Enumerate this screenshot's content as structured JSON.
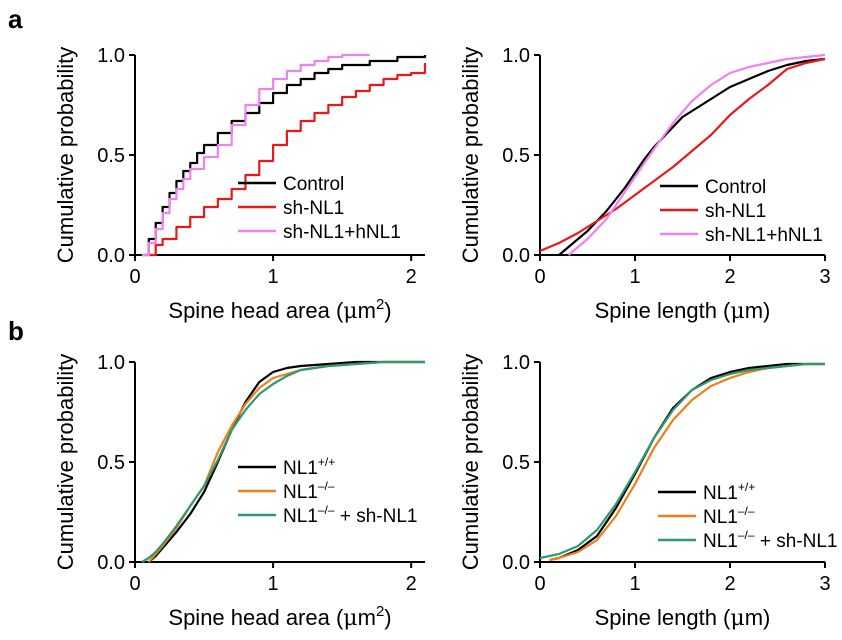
{
  "panel_labels": [
    "a",
    "b"
  ],
  "chart_data": [
    {
      "panel": "a",
      "type": "line",
      "step": true,
      "ylabel": "Cumulative probability",
      "xlabel": "Spine head area (μm²)",
      "xlabel_main": "Spine head area (",
      "xlabel_mu": "μ",
      "xlabel_unit": "m",
      "xlabel_sup": "2",
      "xlabel_close": ")",
      "xlim": [
        0,
        2.1
      ],
      "ylim": [
        0,
        1.0
      ],
      "xticks": [
        "0",
        "1",
        "2"
      ],
      "yticks": [
        "0.0",
        "0.5",
        "1.0"
      ],
      "legend_position": "bottom-right",
      "series": [
        {
          "name": "Control",
          "color": "#000000",
          "x": [
            0.05,
            0.1,
            0.15,
            0.2,
            0.25,
            0.3,
            0.35,
            0.4,
            0.45,
            0.5,
            0.6,
            0.7,
            0.8,
            0.9,
            1.0,
            1.1,
            1.2,
            1.3,
            1.4,
            1.5,
            1.7,
            1.9,
            2.1
          ],
          "y": [
            0.0,
            0.08,
            0.16,
            0.24,
            0.31,
            0.37,
            0.42,
            0.46,
            0.51,
            0.55,
            0.61,
            0.67,
            0.71,
            0.76,
            0.81,
            0.85,
            0.88,
            0.91,
            0.93,
            0.95,
            0.97,
            0.99,
            1.0
          ]
        },
        {
          "name": "sh-NL1",
          "color": "#e8191c",
          "x": [
            0.1,
            0.15,
            0.2,
            0.3,
            0.4,
            0.5,
            0.6,
            0.7,
            0.8,
            0.9,
            1.0,
            1.1,
            1.2,
            1.3,
            1.4,
            1.5,
            1.6,
            1.7,
            1.8,
            1.9,
            2.0,
            2.1
          ],
          "y": [
            0.0,
            0.05,
            0.08,
            0.14,
            0.19,
            0.24,
            0.28,
            0.33,
            0.4,
            0.47,
            0.55,
            0.62,
            0.67,
            0.71,
            0.75,
            0.79,
            0.82,
            0.85,
            0.88,
            0.9,
            0.91,
            0.96
          ]
        },
        {
          "name": "sh-NL1+hNL1",
          "color": "#ee82ee",
          "x": [
            0.05,
            0.1,
            0.15,
            0.2,
            0.25,
            0.3,
            0.35,
            0.4,
            0.5,
            0.6,
            0.7,
            0.8,
            0.9,
            1.0,
            1.1,
            1.2,
            1.3,
            1.4,
            1.5,
            1.6,
            1.7
          ],
          "y": [
            0.0,
            0.06,
            0.13,
            0.21,
            0.28,
            0.33,
            0.38,
            0.43,
            0.49,
            0.55,
            0.65,
            0.75,
            0.83,
            0.88,
            0.92,
            0.95,
            0.97,
            0.99,
            1.0,
            1.0,
            1.0
          ]
        }
      ]
    },
    {
      "panel": "a",
      "type": "line",
      "step": false,
      "ylabel": "Cumulative probability",
      "xlabel": "Spine length (μm)",
      "xlabel_main": "Spine length (",
      "xlabel_mu": "μ",
      "xlabel_unit": "m)",
      "xlabel_sup": "",
      "xlabel_close": "",
      "xlim": [
        0,
        3
      ],
      "ylim": [
        0,
        1.0
      ],
      "xticks": [
        "0",
        "1",
        "2",
        "3"
      ],
      "yticks": [
        "0.0",
        "0.5",
        "1.0"
      ],
      "legend_position": "bottom-right",
      "series": [
        {
          "name": "Control",
          "color": "#000000",
          "x": [
            0.2,
            0.3,
            0.4,
            0.5,
            0.6,
            0.7,
            0.8,
            0.9,
            1.0,
            1.1,
            1.2,
            1.3,
            1.4,
            1.5,
            1.6,
            1.8,
            2.0,
            2.2,
            2.4,
            2.6,
            2.8,
            3.0
          ],
          "y": [
            0.0,
            0.04,
            0.08,
            0.12,
            0.17,
            0.22,
            0.28,
            0.34,
            0.41,
            0.48,
            0.54,
            0.59,
            0.64,
            0.69,
            0.72,
            0.78,
            0.84,
            0.88,
            0.92,
            0.95,
            0.97,
            0.98
          ]
        },
        {
          "name": "sh-NL1",
          "color": "#e8191c",
          "x": [
            0.0,
            0.2,
            0.4,
            0.6,
            0.8,
            1.0,
            1.2,
            1.4,
            1.6,
            1.8,
            2.0,
            2.2,
            2.4,
            2.6,
            2.8,
            3.0
          ],
          "y": [
            0.02,
            0.06,
            0.11,
            0.17,
            0.23,
            0.3,
            0.37,
            0.44,
            0.52,
            0.6,
            0.7,
            0.78,
            0.85,
            0.93,
            0.96,
            0.98
          ]
        },
        {
          "name": "sh-NL1+hNL1",
          "color": "#ee82ee",
          "x": [
            0.3,
            0.4,
            0.5,
            0.6,
            0.7,
            0.8,
            0.9,
            1.0,
            1.2,
            1.4,
            1.6,
            1.8,
            2.0,
            2.2,
            2.4,
            2.6,
            2.8,
            3.0
          ],
          "y": [
            0.0,
            0.04,
            0.08,
            0.13,
            0.18,
            0.25,
            0.32,
            0.39,
            0.53,
            0.66,
            0.77,
            0.85,
            0.91,
            0.94,
            0.96,
            0.98,
            0.99,
            1.0
          ]
        }
      ]
    },
    {
      "panel": "b",
      "type": "line",
      "step": false,
      "ylabel": "Cumulative probability",
      "xlabel": "Spine head area (μm²)",
      "xlabel_main": "Spine head area (",
      "xlabel_mu": "μ",
      "xlabel_unit": "m",
      "xlabel_sup": "2",
      "xlabel_close": ")",
      "xlim": [
        0,
        2.1
      ],
      "ylim": [
        0,
        1.0
      ],
      "xticks": [
        "0",
        "1",
        "2"
      ],
      "yticks": [
        "0.0",
        "0.5",
        "1.0"
      ],
      "legend_position": "bottom-right",
      "series": [
        {
          "name_main": "NL1",
          "name_sup": "+/+",
          "name_tail": "",
          "color": "#000000",
          "x": [
            0.1,
            0.15,
            0.2,
            0.3,
            0.4,
            0.5,
            0.6,
            0.7,
            0.8,
            0.9,
            1.0,
            1.1,
            1.2,
            1.4,
            1.6,
            1.8,
            2.1
          ],
          "y": [
            0.0,
            0.03,
            0.07,
            0.15,
            0.24,
            0.35,
            0.5,
            0.66,
            0.8,
            0.9,
            0.95,
            0.97,
            0.98,
            0.99,
            1.0,
            1.0,
            1.0
          ]
        },
        {
          "name_main": "NL1",
          "name_sup": "–/–",
          "name_tail": "",
          "color": "#f07f1b",
          "x": [
            0.1,
            0.15,
            0.2,
            0.3,
            0.4,
            0.5,
            0.6,
            0.7,
            0.8,
            0.9,
            1.0,
            1.1,
            1.2,
            1.4,
            1.6,
            1.8,
            2.1
          ],
          "y": [
            0.0,
            0.04,
            0.08,
            0.17,
            0.28,
            0.38,
            0.55,
            0.68,
            0.79,
            0.87,
            0.92,
            0.94,
            0.96,
            0.98,
            0.99,
            1.0,
            1.0
          ]
        },
        {
          "name_main": "NL1",
          "name_sup": "–/–",
          "name_tail": " + sh-NL1",
          "color": "#2e9a6e",
          "x": [
            0.05,
            0.1,
            0.15,
            0.2,
            0.3,
            0.4,
            0.5,
            0.6,
            0.7,
            0.8,
            0.9,
            1.0,
            1.1,
            1.2,
            1.4,
            1.6,
            1.8,
            2.1
          ],
          "y": [
            0.0,
            0.02,
            0.05,
            0.09,
            0.18,
            0.28,
            0.38,
            0.51,
            0.66,
            0.76,
            0.84,
            0.89,
            0.93,
            0.96,
            0.98,
            0.99,
            1.0,
            1.0
          ]
        }
      ]
    },
    {
      "panel": "b",
      "type": "line",
      "step": false,
      "ylabel": "Cumulative probability",
      "xlabel": "Spine length (μm)",
      "xlabel_main": "Spine length (",
      "xlabel_mu": "μ",
      "xlabel_unit": "m)",
      "xlabel_sup": "",
      "xlabel_close": "",
      "xlim": [
        0,
        3
      ],
      "ylim": [
        0,
        1.0
      ],
      "xticks": [
        "0",
        "1",
        "2",
        "3"
      ],
      "yticks": [
        "0.0",
        "0.5",
        "1.0"
      ],
      "legend_position": "bottom-right",
      "series": [
        {
          "name_main": "NL1",
          "name_sup": "+/+",
          "name_tail": "",
          "color": "#000000",
          "x": [
            0.1,
            0.2,
            0.4,
            0.6,
            0.8,
            1.0,
            1.2,
            1.4,
            1.6,
            1.8,
            2.0,
            2.2,
            2.4,
            2.6,
            2.8,
            3.0
          ],
          "y": [
            0.01,
            0.02,
            0.06,
            0.13,
            0.27,
            0.44,
            0.62,
            0.77,
            0.86,
            0.92,
            0.95,
            0.97,
            0.98,
            0.99,
            0.99,
            0.99
          ]
        },
        {
          "name_main": "NL1",
          "name_sup": "–/–",
          "name_tail": "",
          "color": "#f07f1b",
          "x": [
            0.1,
            0.2,
            0.4,
            0.6,
            0.8,
            1.0,
            1.2,
            1.4,
            1.6,
            1.8,
            2.0,
            2.2,
            2.4,
            2.6,
            2.8,
            3.0
          ],
          "y": [
            0.01,
            0.02,
            0.05,
            0.11,
            0.23,
            0.39,
            0.57,
            0.71,
            0.81,
            0.88,
            0.92,
            0.95,
            0.97,
            0.98,
            0.99,
            0.99
          ]
        },
        {
          "name_main": "NL1",
          "name_sup": "–/–",
          "name_tail": " + sh-NL1",
          "color": "#2e9a6e",
          "x": [
            0.0,
            0.2,
            0.4,
            0.6,
            0.8,
            1.0,
            1.2,
            1.4,
            1.6,
            1.8,
            2.0,
            2.2,
            2.4,
            2.6,
            2.8,
            3.0
          ],
          "y": [
            0.02,
            0.04,
            0.08,
            0.16,
            0.29,
            0.45,
            0.62,
            0.76,
            0.86,
            0.91,
            0.94,
            0.96,
            0.97,
            0.98,
            0.99,
            0.99
          ]
        }
      ]
    }
  ]
}
